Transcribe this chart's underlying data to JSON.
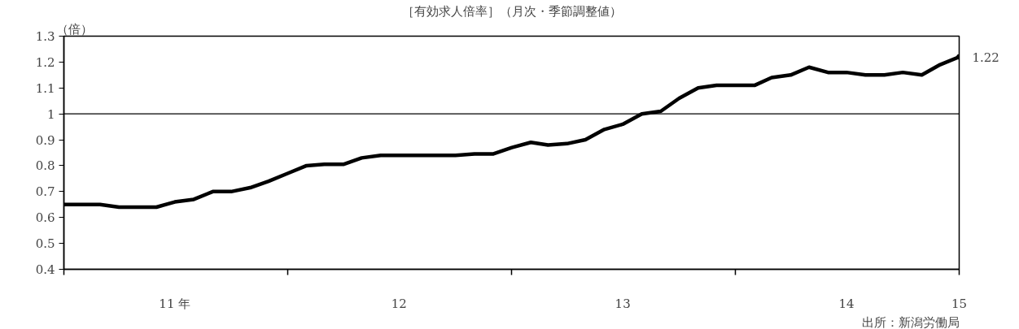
{
  "chart_data": {
    "type": "line",
    "title": "［有効求人倍率］（月次・季節調整値）",
    "ylabel": "（倍）",
    "x": [
      "2011-01",
      "2011-02",
      "2011-03",
      "2011-04",
      "2011-05",
      "2011-06",
      "2011-07",
      "2011-08",
      "2011-09",
      "2011-10",
      "2011-11",
      "2011-12",
      "2012-01",
      "2012-02",
      "2012-03",
      "2012-04",
      "2012-05",
      "2012-06",
      "2012-07",
      "2012-08",
      "2012-09",
      "2012-10",
      "2012-11",
      "2012-12",
      "2013-01",
      "2013-02",
      "2013-03",
      "2013-04",
      "2013-05",
      "2013-06",
      "2013-07",
      "2013-08",
      "2013-09",
      "2013-10",
      "2013-11",
      "2013-12",
      "2014-01",
      "2014-02",
      "2014-03",
      "2014-04",
      "2014-05",
      "2014-06",
      "2014-07",
      "2014-08",
      "2014-09",
      "2014-10",
      "2014-11",
      "2014-12",
      "2015-01"
    ],
    "series": [
      {
        "color": "#000000",
        "values": [
          0.65,
          0.65,
          0.65,
          0.64,
          0.64,
          0.64,
          0.66,
          0.67,
          0.7,
          0.7,
          0.715,
          0.74,
          0.77,
          0.8,
          0.805,
          0.805,
          0.83,
          0.84,
          0.84,
          0.84,
          0.84,
          0.84,
          0.845,
          0.845,
          0.87,
          0.89,
          0.88,
          0.885,
          0.9,
          0.94,
          0.96,
          1.0,
          1.01,
          1.06,
          1.1,
          1.11,
          1.11,
          1.11,
          1.14,
          1.15,
          1.18,
          1.16,
          1.16,
          1.15,
          1.15,
          1.16,
          1.15,
          1.19,
          1.22
        ]
      }
    ],
    "xlim": [
      "2011-01",
      "2015-01"
    ],
    "xticks": [
      {
        "value": "2011-01",
        "label": null
      },
      {
        "value": "2011-07",
        "label": "11 年"
      },
      {
        "value": "2012-01",
        "label": null
      },
      {
        "value": "2012-07",
        "label": "12"
      },
      {
        "value": "2013-01",
        "label": null
      },
      {
        "value": "2013-07",
        "label": "13"
      },
      {
        "value": "2014-01",
        "label": null
      },
      {
        "value": "2014-07",
        "label": "14"
      },
      {
        "value": "2015-01",
        "label": "15"
      }
    ],
    "ylim": [
      0.4,
      1.3
    ],
    "yticks": [
      0.4,
      0.5,
      0.6,
      0.7,
      0.8,
      0.9,
      1.0,
      1.1,
      1.2,
      1.3
    ],
    "ref_lines": [
      {
        "axis": "y",
        "value": 1.0,
        "label": null,
        "color": "#000000"
      }
    ],
    "annotations": [
      {
        "text": "1.22",
        "x": "2015-01",
        "y": 1.22
      },
      "出所：新潟労働局"
    ],
    "grid": false,
    "line_style": "solid"
  }
}
